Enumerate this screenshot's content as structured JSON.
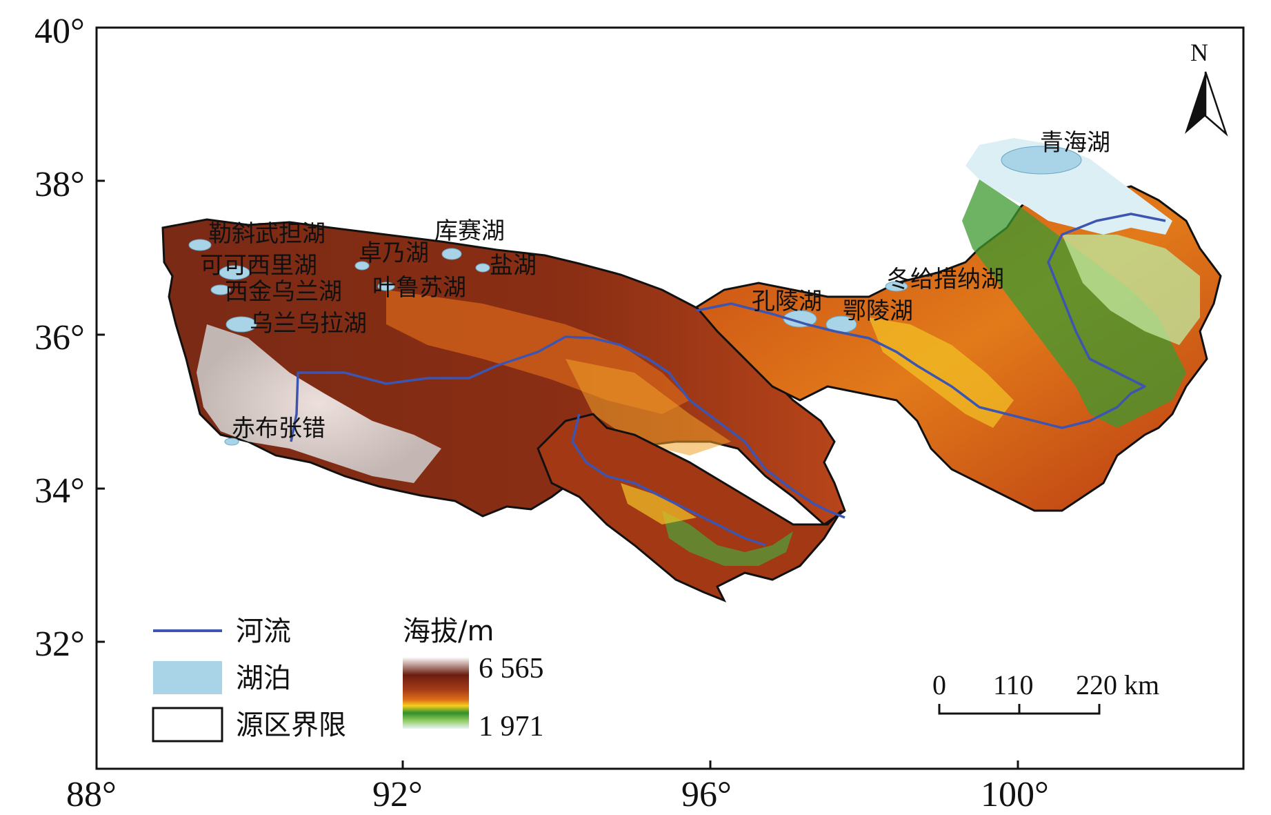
{
  "map": {
    "axes": {
      "y_ticks": [
        "40°",
        "38°",
        "36°",
        "34°",
        "32°"
      ],
      "x_ticks": [
        "88°",
        "92°",
        "96°",
        "100°"
      ]
    },
    "north_label": "N",
    "lake_labels": [
      "勒斜武担湖",
      "库赛湖",
      "卓乃湖",
      "可可西里湖",
      "盐湖",
      "西金乌兰湖",
      "叶鲁苏湖",
      "乌兰乌拉湖",
      "赤布张错",
      "孔陵湖",
      "鄂陵湖",
      "冬给措纳湖",
      "青海湖"
    ],
    "legend": {
      "river": "河流",
      "lake": "湖泊",
      "boundary": "源区界限",
      "elevation_title": "海拔/m",
      "elevation_max": "6 565",
      "elevation_min": "1 971"
    },
    "scale_bar": {
      "labels": [
        "0",
        "110",
        "220 km"
      ]
    },
    "colors": {
      "river": "#3d55b0",
      "lake": "#a9d3e6",
      "boundary": "#111111",
      "elev_high": "#6b1e10",
      "elev_mid": "#d96a1c",
      "elev_low": "#3c9a2a",
      "snow": "#f4f4f4"
    }
  }
}
